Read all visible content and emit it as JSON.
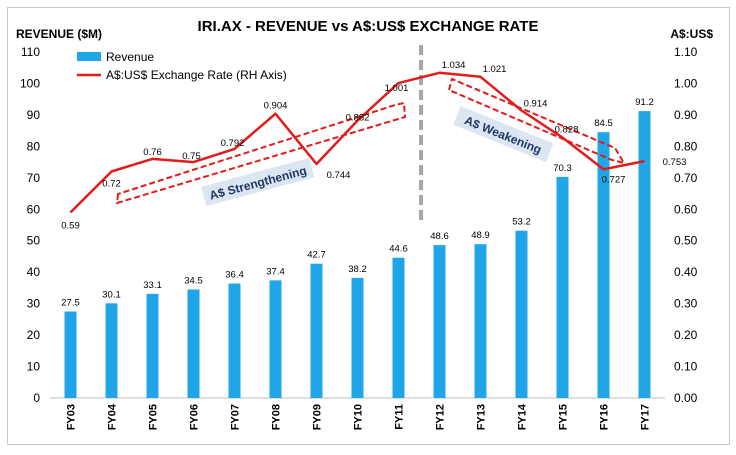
{
  "chart_data": {
    "type": "bar+line",
    "title": "IRI.AX - REVENUE vs A$:US$ EXCHANGE RATE",
    "ylabel_left": "REVENUE ($M)",
    "ylabel_right": "A$:US$",
    "categories": [
      "FY03",
      "FY04",
      "FY05",
      "FY06",
      "FY07",
      "FY08",
      "FY09",
      "FY10",
      "FY11",
      "FY12",
      "FY13",
      "FY14",
      "FY15",
      "FY16",
      "FY17"
    ],
    "series": [
      {
        "name": "Revenue",
        "type": "bar",
        "axis": "left",
        "values": [
          27.5,
          30.1,
          33.1,
          34.5,
          36.4,
          37.4,
          42.7,
          38.2,
          44.6,
          48.6,
          48.9,
          53.2,
          70.3,
          84.5,
          91.2
        ],
        "labels": [
          "27.5",
          "30.1",
          "33.1",
          "34.5",
          "36.4",
          "37.4",
          "42.7",
          "38.2",
          "44.6",
          "48.6",
          "48.9",
          "53.2",
          "70.3",
          "84.5",
          "91.2"
        ]
      },
      {
        "name": "A$:US$ Exchange Rate (RH Axis)",
        "type": "line",
        "axis": "right",
        "values": [
          0.59,
          0.72,
          0.76,
          0.75,
          0.792,
          0.904,
          0.744,
          0.882,
          1.001,
          1.034,
          1.021,
          0.914,
          0.828,
          0.727,
          0.753
        ],
        "labels": [
          "0.59",
          "0.72",
          "0.76",
          "0.75",
          "0.792",
          "0.904",
          "0.744",
          "0.882",
          "1.001",
          "1.034",
          "1.021",
          "0.914",
          "0.828",
          "0.727",
          "0.753"
        ]
      }
    ],
    "ylim_left": [
      0,
      110
    ],
    "yticks_left": [
      "0",
      "10",
      "20",
      "30",
      "40",
      "50",
      "60",
      "70",
      "80",
      "90",
      "100",
      "110"
    ],
    "ylim_right": [
      0,
      1.1
    ],
    "yticks_right": [
      "0.00",
      "0.10",
      "0.20",
      "0.30",
      "0.40",
      "0.50",
      "0.60",
      "0.70",
      "0.80",
      "0.90",
      "1.00",
      "1.10"
    ],
    "grid": false,
    "legend_position": "top-left",
    "annotations": [
      {
        "text": "A$ Strengthening"
      },
      {
        "text": "A$ Weakening"
      }
    ],
    "divider_after_category": "FY12",
    "colors": {
      "bar": "#1ea6e8",
      "line": "#e31b1b",
      "divider": "#a6a6a6",
      "annotation_box": "#dce6f2",
      "annotation_text": "#1f3864"
    }
  }
}
